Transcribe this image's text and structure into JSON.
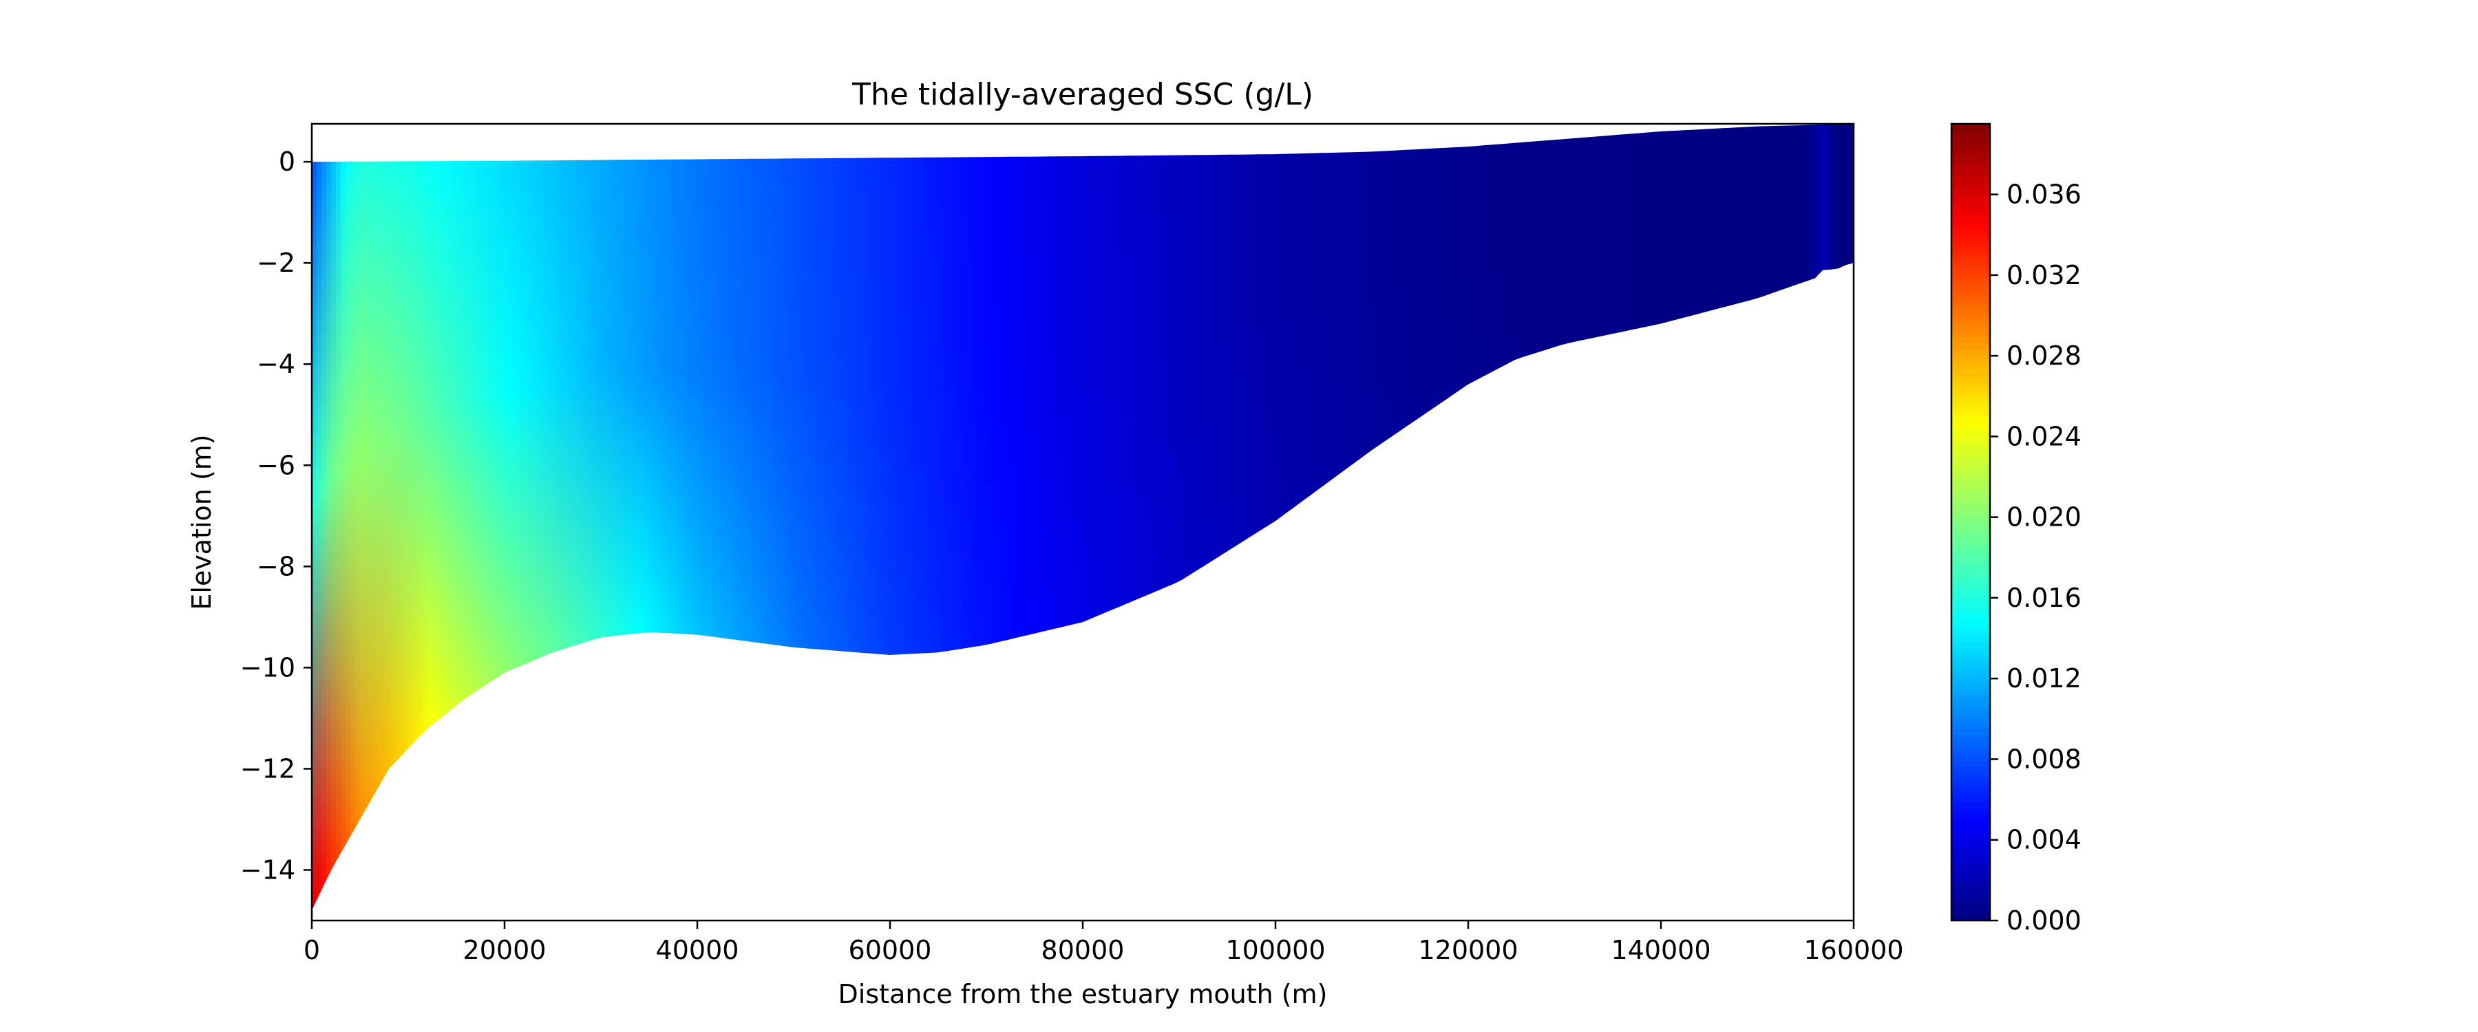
{
  "chart_data": {
    "type": "heatmap",
    "title": "The tidally-averaged SSC (g/L)",
    "xlabel": "Distance from the estuary mouth (m)",
    "ylabel": "Elevation (m)",
    "xlim": [
      0,
      160000
    ],
    "ylim": [
      -15,
      0.75
    ],
    "xticks": [
      0,
      20000,
      40000,
      60000,
      80000,
      100000,
      120000,
      140000,
      160000
    ],
    "xtick_labels": [
      "0",
      "20000",
      "40000",
      "60000",
      "80000",
      "100000",
      "120000",
      "140000",
      "160000"
    ],
    "yticks": [
      0,
      -2,
      -4,
      -6,
      -8,
      -10,
      -12,
      -14
    ],
    "ytick_labels": [
      "0",
      "−2",
      "−4",
      "−6",
      "−8",
      "−10",
      "−12",
      "−14"
    ],
    "colormap": "jet",
    "colorbar": {
      "range": [
        0,
        0.0395
      ],
      "ticks": [
        0.0,
        0.004,
        0.008,
        0.012,
        0.016,
        0.02,
        0.024,
        0.028,
        0.032,
        0.036
      ],
      "tick_labels": [
        "0.000",
        "0.004",
        "0.008",
        "0.012",
        "0.016",
        "0.020",
        "0.024",
        "0.028",
        "0.032",
        "0.036"
      ]
    },
    "water_surface": {
      "x": [
        0,
        20000,
        40000,
        60000,
        80000,
        100000,
        110000,
        120000,
        130000,
        140000,
        150000,
        160000
      ],
      "z": [
        0,
        0.02,
        0.05,
        0.08,
        0.11,
        0.15,
        0.2,
        0.3,
        0.45,
        0.6,
        0.7,
        0.75
      ]
    },
    "bed_profile": {
      "x": [
        0,
        2000,
        5000,
        8000,
        12000,
        16000,
        20000,
        25000,
        30000,
        35000,
        40000,
        50000,
        60000,
        65000,
        70000,
        80000,
        90000,
        100000,
        110000,
        120000,
        125000,
        130000,
        140000,
        150000,
        156000,
        157000,
        158000,
        159000,
        160000
      ],
      "z": [
        -14.8,
        -14.0,
        -13.0,
        -12.0,
        -11.2,
        -10.6,
        -10.1,
        -9.7,
        -9.4,
        -9.3,
        -9.35,
        -9.6,
        -9.75,
        -9.7,
        -9.55,
        -9.1,
        -8.3,
        -7.1,
        -5.7,
        -4.4,
        -3.9,
        -3.6,
        -3.2,
        -2.7,
        -2.3,
        -2.1,
        -2.15,
        -2.05,
        -2.0
      ]
    },
    "ssc_field": {
      "description": "tidally-averaged SSC sampled along x at three relative depths (surface, mid, bed)",
      "x": [
        0,
        2000,
        3500,
        5000,
        10000,
        15000,
        20000,
        25000,
        30000,
        35000,
        40000,
        50000,
        60000,
        70000,
        80000,
        90000,
        100000,
        110000,
        120000,
        130000,
        140000,
        150000,
        155000,
        157000,
        158000,
        160000
      ],
      "surface": [
        0.008,
        0.012,
        0.015,
        0.016,
        0.0155,
        0.0145,
        0.0135,
        0.0125,
        0.0115,
        0.0105,
        0.0095,
        0.008,
        0.0065,
        0.005,
        0.0035,
        0.0025,
        0.0015,
        0.001,
        0.0005,
        0.0003,
        0.0002,
        0.0001,
        0.0001,
        0.002,
        0.0001,
        0.0
      ],
      "mid": [
        0.016,
        0.019,
        0.02,
        0.0205,
        0.019,
        0.017,
        0.015,
        0.0135,
        0.012,
        0.0108,
        0.0098,
        0.0082,
        0.0066,
        0.0051,
        0.0036,
        0.0025,
        0.0015,
        0.001,
        0.0005,
        0.0003,
        0.0002,
        0.0001,
        0.0001,
        0.002,
        0.0001,
        0.0
      ],
      "bed": [
        0.036,
        0.033,
        0.031,
        0.029,
        0.026,
        0.023,
        0.0205,
        0.0185,
        0.0165,
        0.0145,
        0.0125,
        0.0095,
        0.0072,
        0.0055,
        0.004,
        0.0028,
        0.0018,
        0.0011,
        0.0006,
        0.0003,
        0.0002,
        0.0001,
        0.0001,
        0.002,
        0.0001,
        0.0
      ]
    }
  }
}
